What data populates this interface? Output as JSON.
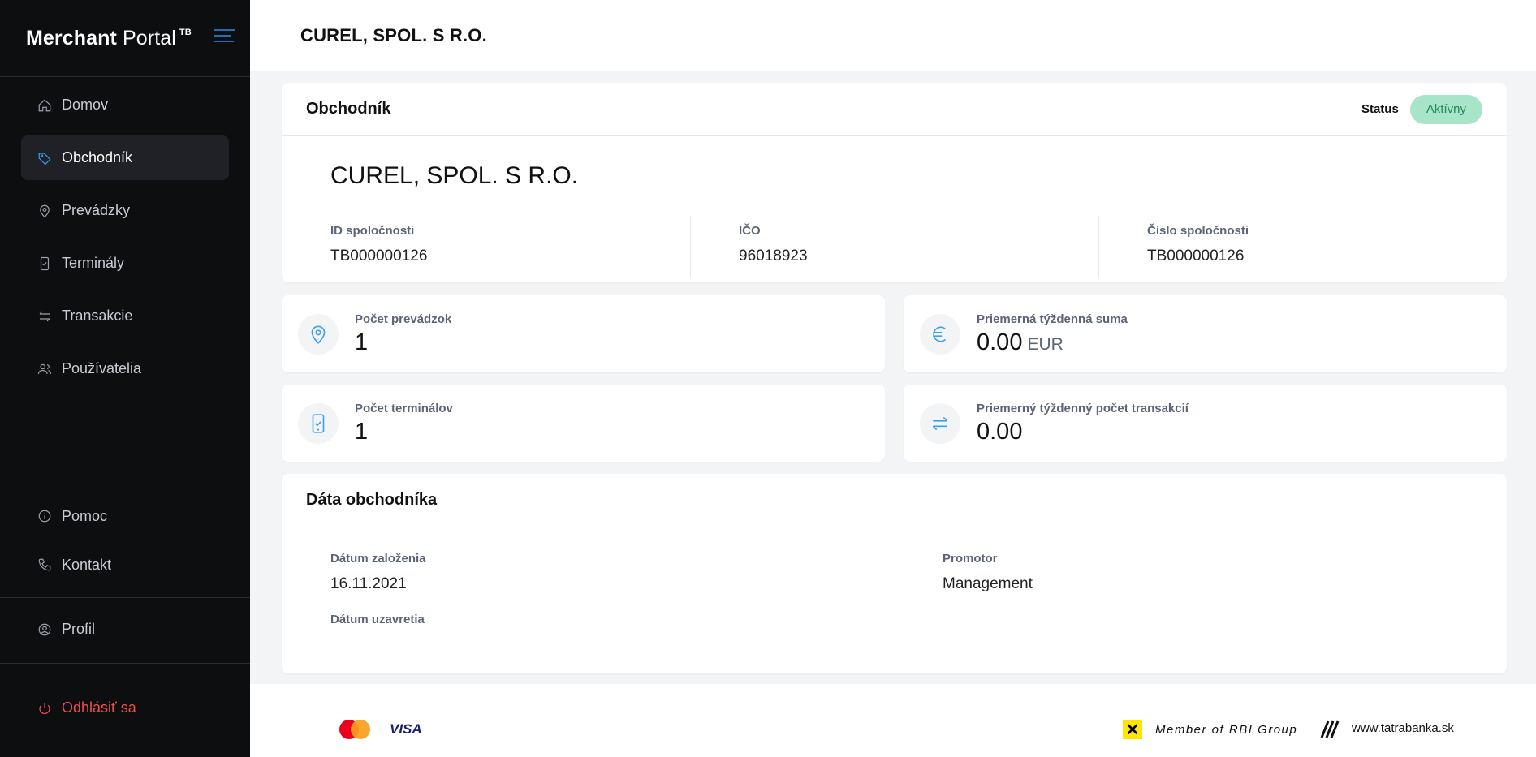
{
  "brand": {
    "name_bold": "Merchant",
    "name_rest": "Portal",
    "sup": "TB"
  },
  "sidebar": {
    "items": [
      {
        "label": "Domov",
        "icon": "home-icon"
      },
      {
        "label": "Obchodník",
        "icon": "tag-icon",
        "active": true
      },
      {
        "label": "Prevádzky",
        "icon": "location-pin-icon"
      },
      {
        "label": "Terminály",
        "icon": "terminal-icon"
      },
      {
        "label": "Transakcie",
        "icon": "transfer-arrows-icon"
      },
      {
        "label": "Používatelia",
        "icon": "users-icon"
      }
    ],
    "help": "Pomoc",
    "contact": "Kontakt",
    "profile": "Profil",
    "logout": "Odhlásiť sa"
  },
  "header": {
    "title": "CUREL, SPOL. S R.O."
  },
  "merchant": {
    "section_title": "Obchodník",
    "status_label": "Status",
    "status_value": "Aktívny",
    "name": "CUREL, SPOL. S R.O.",
    "fields": [
      {
        "label": "ID spoločnosti",
        "value": "TB000000126"
      },
      {
        "label": "IČO",
        "value": "96018923"
      },
      {
        "label": "Číslo spoločnosti",
        "value": "TB000000126"
      }
    ]
  },
  "stats": {
    "shops": {
      "label": "Počet prevádzok",
      "value": "1"
    },
    "avg_sum": {
      "label": "Priemerná týždenná suma",
      "value": "0.00",
      "unit": "EUR"
    },
    "terminals": {
      "label": "Počet terminálov",
      "value": "1"
    },
    "avg_tx": {
      "label": "Priemerný týždenný počet transakcií",
      "value": "0.00"
    }
  },
  "merchant_data": {
    "title": "Dáta obchodníka",
    "founded_label": "Dátum založenia",
    "founded_value": "16.11.2021",
    "closed_label": "Dátum uzavretia",
    "promoter_label": "Promotor",
    "promoter_value": "Management"
  },
  "footer": {
    "visa": "VISA",
    "rbi": "Member of RBI Group",
    "rbi_mark": "✕",
    "site": "www.tatrabanka.sk"
  },
  "colors": {
    "sidebar_bg": "#0d0e10",
    "accent": "#3aa0e8",
    "status_bg": "#a8e4c8",
    "logout": "#ef4e4e"
  }
}
